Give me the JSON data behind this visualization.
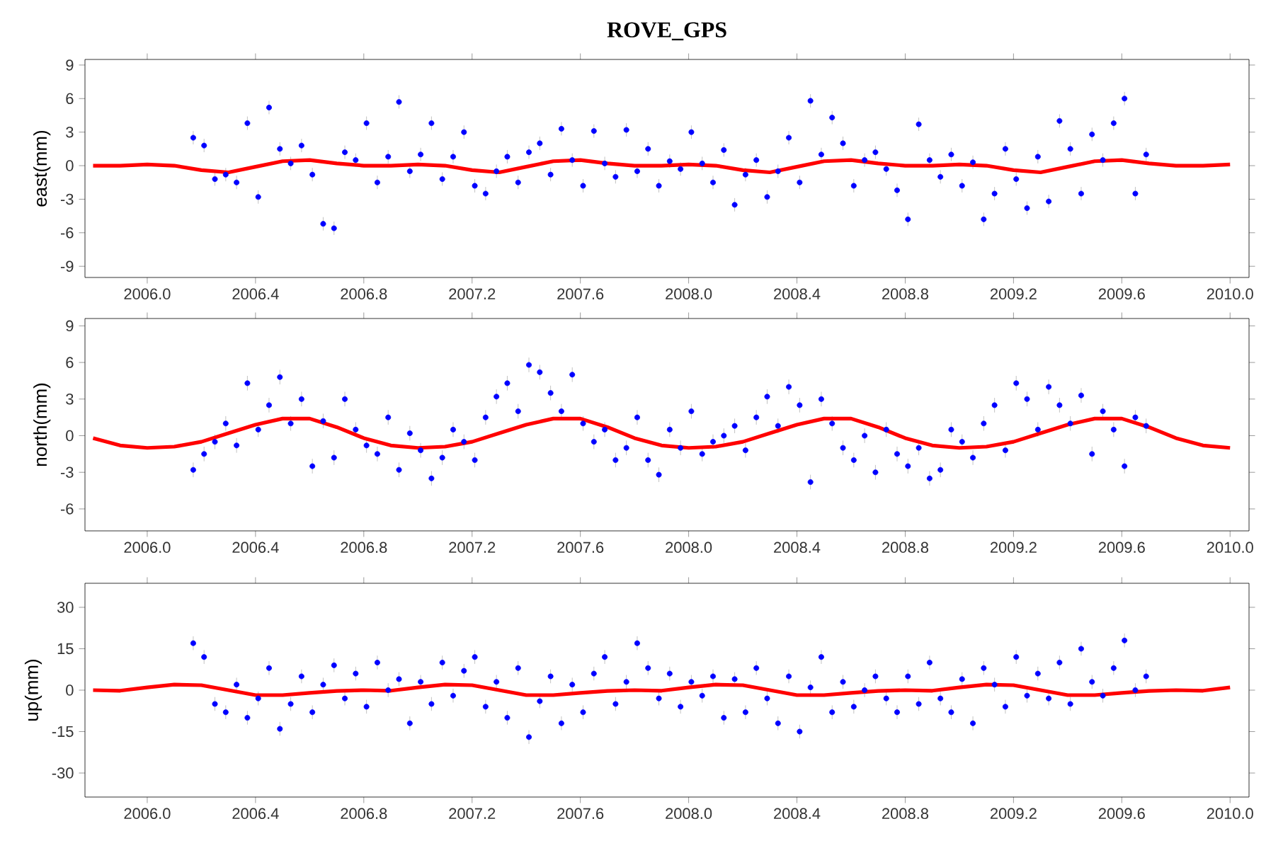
{
  "chart_data": [
    {
      "type": "scatter",
      "title": "ROVE_GPS",
      "ylabel": "east(mm)",
      "xlim": [
        2005.77,
        2010.07
      ],
      "ylim": [
        -10,
        9.5
      ],
      "xticks": [
        {
          "value": 2006.0,
          "label": "2006.0"
        },
        {
          "value": 2006.4,
          "label": "2006.4"
        },
        {
          "value": 2006.8,
          "label": "2006.8"
        },
        {
          "value": 2007.2,
          "label": "2007.2"
        },
        {
          "value": 2007.6,
          "label": "2007.6"
        },
        {
          "value": 2008.0,
          "label": "2008.0"
        },
        {
          "value": 2008.4,
          "label": "2008.4"
        },
        {
          "value": 2008.8,
          "label": "2008.8"
        },
        {
          "value": 2009.2,
          "label": "2009.2"
        },
        {
          "value": 2009.6,
          "label": "2009.6"
        },
        {
          "value": 2010.0,
          "label": "2010.0"
        }
      ],
      "yticks": [
        -9,
        -6,
        -3,
        0,
        3,
        6,
        9
      ],
      "series": [
        {
          "type": "scatter",
          "marker": "circle",
          "color": "#0000ff",
          "x": [
            2006.17,
            2006.21,
            2006.25,
            2006.29,
            2006.33,
            2006.37,
            2006.41,
            2006.45,
            2006.49,
            2006.53,
            2006.57,
            2006.61,
            2006.65,
            2006.69,
            2006.73,
            2006.77,
            2006.81,
            2006.85,
            2006.89,
            2006.93,
            2006.97,
            2007.01,
            2007.05,
            2007.09,
            2007.13,
            2007.17,
            2007.21,
            2007.25,
            2007.29,
            2007.33,
            2007.37,
            2007.41,
            2007.45,
            2007.49,
            2007.53,
            2007.57,
            2007.61,
            2007.65,
            2007.69,
            2007.73,
            2007.77,
            2007.81,
            2007.85,
            2007.89,
            2007.93,
            2007.97,
            2008.01,
            2008.05,
            2008.09,
            2008.13,
            2008.17,
            2008.21,
            2008.25,
            2008.29,
            2008.33,
            2008.37,
            2008.41,
            2008.45,
            2008.49,
            2008.53,
            2008.57,
            2008.61,
            2008.65,
            2008.69,
            2008.73,
            2008.77,
            2008.81,
            2008.85,
            2008.89,
            2008.93,
            2008.97,
            2009.01,
            2009.05,
            2009.09,
            2009.13,
            2009.17,
            2009.21,
            2009.25,
            2009.29,
            2009.33,
            2009.37,
            2009.41,
            2009.45,
            2009.49,
            2009.53,
            2009.57,
            2009.61,
            2009.65,
            2009.69
          ],
          "values": [
            2.5,
            1.8,
            -1.2,
            -0.8,
            -1.5,
            3.8,
            -2.8,
            5.2,
            1.5,
            0.2,
            1.8,
            -0.8,
            -5.2,
            -5.6,
            1.2,
            0.5,
            3.8,
            -1.5,
            0.8,
            5.7,
            -0.5,
            1.0,
            3.8,
            -1.2,
            0.8,
            3.0,
            -1.8,
            -2.5,
            -0.5,
            0.8,
            -1.5,
            1.2,
            2.0,
            -0.8,
            3.3,
            0.5,
            -1.8,
            3.1,
            0.2,
            -1.0,
            3.2,
            -0.5,
            1.5,
            -1.8,
            0.4,
            -0.3,
            3.0,
            0.2,
            -1.5,
            1.4,
            -3.5,
            -0.8,
            0.5,
            -2.8,
            -0.5,
            2.5,
            -1.5,
            5.8,
            1.0,
            4.3,
            2.0,
            -1.8,
            0.5,
            1.2,
            -0.3,
            -2.2,
            -4.8,
            3.7,
            0.5,
            -1.0,
            1.0,
            -1.8,
            0.3,
            -4.8,
            -2.5,
            1.5,
            -1.2,
            -3.8,
            0.8,
            -3.2,
            4.0,
            1.5,
            -2.5,
            2.8,
            0.5,
            3.8,
            6.0,
            -2.5,
            1.0
          ],
          "errors": [
            0.6,
            0.6,
            0.6,
            0.6,
            0.6,
            0.6,
            0.6,
            0.6,
            0.6,
            0.6,
            0.6,
            0.6,
            0.6,
            0.6,
            0.6,
            0.6,
            0.6,
            0.6,
            0.6,
            0.6,
            0.6,
            0.6,
            0.6,
            0.6,
            0.6,
            0.6,
            0.6,
            0.6,
            0.6,
            0.6,
            0.6,
            0.6,
            0.6,
            0.6,
            0.6,
            0.6,
            0.6,
            0.6,
            0.6,
            0.6,
            0.6,
            0.6,
            0.6,
            0.6,
            0.6,
            0.6,
            0.6,
            0.6,
            0.6,
            0.6,
            0.6,
            0.6,
            0.6,
            0.6,
            0.6,
            0.6,
            0.6,
            0.6,
            0.6,
            0.6,
            0.6,
            0.6,
            0.6,
            0.6,
            0.6,
            0.6,
            0.6,
            0.6,
            0.6,
            0.6,
            0.6,
            0.6,
            0.6,
            0.6,
            0.6,
            0.6,
            0.6,
            0.6,
            0.6,
            0.6,
            0.6,
            0.6,
            0.6,
            0.6,
            0.6,
            0.6,
            0.6,
            0.6,
            0.6
          ]
        },
        {
          "type": "line",
          "color": "#ff0000",
          "marker": "none",
          "x": [
            2005.8,
            2005.9,
            2006.0,
            2006.1,
            2006.2,
            2006.3,
            2006.4,
            2006.5,
            2006.6,
            2006.7,
            2006.8,
            2006.9,
            2007.0,
            2007.1,
            2007.2,
            2007.3,
            2007.4,
            2007.5,
            2007.6,
            2007.7,
            2007.8,
            2007.9,
            2008.0,
            2008.1,
            2008.2,
            2008.3,
            2008.4,
            2008.5,
            2008.6,
            2008.7,
            2008.8,
            2008.9,
            2009.0,
            2009.1,
            2009.2,
            2009.3,
            2009.4,
            2009.5,
            2009.6,
            2009.7,
            2009.8,
            2009.9,
            2010.0
          ],
          "values": [
            0.0,
            0.0,
            0.1,
            0.0,
            -0.4,
            -0.6,
            -0.1,
            0.4,
            0.5,
            0.2,
            0.0,
            0.0,
            0.1,
            0.0,
            -0.4,
            -0.6,
            -0.1,
            0.4,
            0.5,
            0.2,
            0.0,
            0.0,
            0.1,
            0.0,
            -0.4,
            -0.6,
            -0.1,
            0.4,
            0.5,
            0.2,
            0.0,
            0.0,
            0.1,
            0.0,
            -0.4,
            -0.6,
            -0.1,
            0.4,
            0.5,
            0.2,
            0.0,
            0.0,
            0.1
          ]
        }
      ]
    },
    {
      "type": "scatter",
      "ylabel": "north(mm)",
      "xlim": [
        2005.77,
        2010.07
      ],
      "ylim": [
        -7.8,
        9.6
      ],
      "xticks": [
        {
          "value": 2006.0,
          "label": "2006.0"
        },
        {
          "value": 2006.4,
          "label": "2006.4"
        },
        {
          "value": 2006.8,
          "label": "2006.8"
        },
        {
          "value": 2007.2,
          "label": "2007.2"
        },
        {
          "value": 2007.6,
          "label": "2007.6"
        },
        {
          "value": 2008.0,
          "label": "2008.0"
        },
        {
          "value": 2008.4,
          "label": "2008.4"
        },
        {
          "value": 2008.8,
          "label": "2008.8"
        },
        {
          "value": 2009.2,
          "label": "2009.2"
        },
        {
          "value": 2009.6,
          "label": "2009.6"
        },
        {
          "value": 2010.0,
          "label": "2010.0"
        }
      ],
      "yticks": [
        -6,
        -3,
        0,
        3,
        6,
        9
      ],
      "series": [
        {
          "type": "scatter",
          "marker": "circle",
          "color": "#0000ff",
          "x": [
            2006.17,
            2006.21,
            2006.25,
            2006.29,
            2006.33,
            2006.37,
            2006.41,
            2006.45,
            2006.49,
            2006.53,
            2006.57,
            2006.61,
            2006.65,
            2006.69,
            2006.73,
            2006.77,
            2006.81,
            2006.85,
            2006.89,
            2006.93,
            2006.97,
            2007.01,
            2007.05,
            2007.09,
            2007.13,
            2007.17,
            2007.21,
            2007.25,
            2007.29,
            2007.33,
            2007.37,
            2007.41,
            2007.45,
            2007.49,
            2007.53,
            2007.57,
            2007.61,
            2007.65,
            2007.69,
            2007.73,
            2007.77,
            2007.81,
            2007.85,
            2007.89,
            2007.93,
            2007.97,
            2008.01,
            2008.05,
            2008.09,
            2008.13,
            2008.17,
            2008.21,
            2008.25,
            2008.29,
            2008.33,
            2008.37,
            2008.41,
            2008.45,
            2008.49,
            2008.53,
            2008.57,
            2008.61,
            2008.65,
            2008.69,
            2008.73,
            2008.77,
            2008.81,
            2008.85,
            2008.89,
            2008.93,
            2008.97,
            2009.01,
            2009.05,
            2009.09,
            2009.13,
            2009.17,
            2009.21,
            2009.25,
            2009.29,
            2009.33,
            2009.37,
            2009.41,
            2009.45,
            2009.49,
            2009.53,
            2009.57,
            2009.61,
            2009.65,
            2009.69
          ],
          "values": [
            -2.8,
            -1.5,
            -0.5,
            1.0,
            -0.8,
            4.3,
            0.5,
            2.5,
            4.8,
            1.0,
            3.0,
            -2.5,
            1.2,
            -1.8,
            3.0,
            0.5,
            -0.8,
            -1.5,
            1.5,
            -2.8,
            0.2,
            -1.2,
            -3.5,
            -1.8,
            0.5,
            -0.5,
            -2.0,
            1.5,
            3.2,
            4.3,
            2.0,
            5.8,
            5.2,
            3.5,
            2.0,
            5.0,
            1.0,
            -0.5,
            0.5,
            -2.0,
            -1.0,
            1.5,
            -2.0,
            -3.2,
            0.5,
            -1.0,
            2.0,
            -1.5,
            -0.5,
            0.0,
            0.8,
            -1.2,
            1.5,
            3.2,
            0.8,
            4.0,
            2.5,
            -3.8,
            3.0,
            1.0,
            -1.0,
            -2.0,
            0.0,
            -3.0,
            0.5,
            -1.5,
            -2.5,
            -1.0,
            -3.5,
            -2.8,
            0.5,
            -0.5,
            -1.8,
            1.0,
            2.5,
            -1.2,
            4.3,
            3.0,
            0.5,
            4.0,
            2.5,
            1.0,
            3.3,
            -1.5,
            2.0,
            0.5,
            -2.5,
            1.5,
            0.8
          ],
          "errors": [
            0.6,
            0.6,
            0.6,
            0.6,
            0.6,
            0.6,
            0.6,
            0.6,
            0.6,
            0.6,
            0.6,
            0.6,
            0.6,
            0.6,
            0.6,
            0.6,
            0.6,
            0.6,
            0.6,
            0.6,
            0.6,
            0.6,
            0.6,
            0.6,
            0.6,
            0.6,
            0.6,
            0.6,
            0.6,
            0.6,
            0.6,
            0.6,
            0.6,
            0.6,
            0.6,
            0.6,
            0.6,
            0.6,
            0.6,
            0.6,
            0.6,
            0.6,
            0.6,
            0.6,
            0.6,
            0.6,
            0.6,
            0.6,
            0.6,
            0.6,
            0.6,
            0.6,
            0.6,
            0.6,
            0.6,
            0.6,
            0.6,
            0.6,
            0.6,
            0.6,
            0.6,
            0.6,
            0.6,
            0.6,
            0.6,
            0.6,
            0.6,
            0.6,
            0.6,
            0.6,
            0.6,
            0.6,
            0.6,
            0.6,
            0.6,
            0.6,
            0.6,
            0.6,
            0.6,
            0.6,
            0.6,
            0.6,
            0.6,
            0.6,
            0.6,
            0.6,
            0.6,
            0.6,
            0.6
          ]
        },
        {
          "type": "line",
          "color": "#ff0000",
          "marker": "none",
          "x": [
            2005.8,
            2005.9,
            2006.0,
            2006.1,
            2006.2,
            2006.3,
            2006.4,
            2006.5,
            2006.6,
            2006.7,
            2006.8,
            2006.9,
            2007.0,
            2007.1,
            2007.2,
            2007.3,
            2007.4,
            2007.5,
            2007.6,
            2007.7,
            2007.8,
            2007.9,
            2008.0,
            2008.1,
            2008.2,
            2008.3,
            2008.4,
            2008.5,
            2008.6,
            2008.7,
            2008.8,
            2008.9,
            2009.0,
            2009.1,
            2009.2,
            2009.3,
            2009.4,
            2009.5,
            2009.6,
            2009.7,
            2009.8,
            2009.9,
            2010.0
          ],
          "values": [
            -0.2,
            -0.8,
            -1.0,
            -0.9,
            -0.5,
            0.2,
            0.9,
            1.4,
            1.4,
            0.7,
            -0.2,
            -0.8,
            -1.0,
            -0.9,
            -0.5,
            0.2,
            0.9,
            1.4,
            1.4,
            0.7,
            -0.2,
            -0.8,
            -1.0,
            -0.9,
            -0.5,
            0.2,
            0.9,
            1.4,
            1.4,
            0.7,
            -0.2,
            -0.8,
            -1.0,
            -0.9,
            -0.5,
            0.2,
            0.9,
            1.4,
            1.4,
            0.7,
            -0.2,
            -0.8,
            -1.0
          ]
        }
      ]
    },
    {
      "type": "scatter",
      "ylabel": "up(mm)",
      "xlim": [
        2005.77,
        2010.07
      ],
      "ylim": [
        -38.7,
        38.7
      ],
      "xticks": [
        {
          "value": 2006.0,
          "label": "2006.0"
        },
        {
          "value": 2006.4,
          "label": "2006.4"
        },
        {
          "value": 2006.8,
          "label": "2006.8"
        },
        {
          "value": 2007.2,
          "label": "2007.2"
        },
        {
          "value": 2007.6,
          "label": "2007.6"
        },
        {
          "value": 2008.0,
          "label": "2008.0"
        },
        {
          "value": 2008.4,
          "label": "2008.4"
        },
        {
          "value": 2008.8,
          "label": "2008.8"
        },
        {
          "value": 2009.2,
          "label": "2009.2"
        },
        {
          "value": 2009.6,
          "label": "2009.6"
        },
        {
          "value": 2010.0,
          "label": "2010.0"
        }
      ],
      "yticks": [
        -30,
        -15,
        0,
        15,
        30
      ],
      "series": [
        {
          "type": "scatter",
          "marker": "circle",
          "color": "#0000ff",
          "x": [
            2006.17,
            2006.21,
            2006.25,
            2006.29,
            2006.33,
            2006.37,
            2006.41,
            2006.45,
            2006.49,
            2006.53,
            2006.57,
            2006.61,
            2006.65,
            2006.69,
            2006.73,
            2006.77,
            2006.81,
            2006.85,
            2006.89,
            2006.93,
            2006.97,
            2007.01,
            2007.05,
            2007.09,
            2007.13,
            2007.17,
            2007.21,
            2007.25,
            2007.29,
            2007.33,
            2007.37,
            2007.41,
            2007.45,
            2007.49,
            2007.53,
            2007.57,
            2007.61,
            2007.65,
            2007.69,
            2007.73,
            2007.77,
            2007.81,
            2007.85,
            2007.89,
            2007.93,
            2007.97,
            2008.01,
            2008.05,
            2008.09,
            2008.13,
            2008.17,
            2008.21,
            2008.25,
            2008.29,
            2008.33,
            2008.37,
            2008.41,
            2008.45,
            2008.49,
            2008.53,
            2008.57,
            2008.61,
            2008.65,
            2008.69,
            2008.73,
            2008.77,
            2008.81,
            2008.85,
            2008.89,
            2008.93,
            2008.97,
            2009.01,
            2009.05,
            2009.09,
            2009.13,
            2009.17,
            2009.21,
            2009.25,
            2009.29,
            2009.33,
            2009.37,
            2009.41,
            2009.45,
            2009.49,
            2009.53,
            2009.57,
            2009.61,
            2009.65,
            2009.69
          ],
          "values": [
            17,
            12,
            -5,
            -8,
            2,
            -10,
            -3,
            8,
            -14,
            -5,
            5,
            -8,
            2,
            9,
            -3,
            6,
            -6,
            10,
            0,
            4,
            -12,
            3,
            -5,
            10,
            -2,
            7,
            12,
            -6,
            3,
            -10,
            8,
            -17,
            -4,
            5,
            -12,
            2,
            -8,
            6,
            12,
            -5,
            3,
            17,
            8,
            -3,
            6,
            -6,
            3,
            -2,
            5,
            -10,
            4,
            -8,
            8,
            -3,
            -12,
            5,
            -15,
            1,
            12,
            -8,
            3,
            -6,
            0,
            5,
            -3,
            -8,
            5,
            -5,
            10,
            -3,
            -8,
            4,
            -12,
            8,
            2,
            -6,
            12,
            -2,
            6,
            -3,
            10,
            -5,
            15,
            3,
            -2,
            8,
            18,
            0,
            5
          ],
          "errors": [
            2.5,
            2.5,
            2.5,
            2.5,
            2.5,
            2.5,
            2.5,
            2.5,
            2.5,
            2.5,
            2.5,
            2.5,
            2.5,
            2.5,
            2.5,
            2.5,
            2.5,
            2.5,
            2.5,
            2.5,
            2.5,
            2.5,
            2.5,
            2.5,
            2.5,
            2.5,
            2.5,
            2.5,
            2.5,
            2.5,
            2.5,
            2.5,
            2.5,
            2.5,
            2.5,
            2.5,
            2.5,
            2.5,
            2.5,
            2.5,
            2.5,
            2.5,
            2.5,
            2.5,
            2.5,
            2.5,
            2.5,
            2.5,
            2.5,
            2.5,
            2.5,
            2.5,
            2.5,
            2.5,
            2.5,
            2.5,
            2.5,
            2.5,
            2.5,
            2.5,
            2.5,
            2.5,
            2.5,
            2.5,
            2.5,
            2.5,
            2.5,
            2.5,
            2.5,
            2.5,
            2.5,
            2.5,
            2.5,
            2.5,
            2.5,
            2.5,
            2.5,
            2.5,
            2.5,
            2.5,
            2.5,
            2.5,
            2.5,
            2.5,
            2.5,
            2.5,
            2.5,
            2.5,
            2.5
          ]
        },
        {
          "type": "line",
          "color": "#ff0000",
          "marker": "none",
          "x": [
            2005.8,
            2005.9,
            2006.0,
            2006.1,
            2006.2,
            2006.3,
            2006.4,
            2006.5,
            2006.6,
            2006.7,
            2006.8,
            2006.9,
            2007.0,
            2007.1,
            2007.2,
            2007.3,
            2007.4,
            2007.5,
            2007.6,
            2007.7,
            2007.8,
            2007.9,
            2008.0,
            2008.1,
            2008.2,
            2008.3,
            2008.4,
            2008.5,
            2008.6,
            2008.7,
            2008.8,
            2008.9,
            2009.0,
            2009.1,
            2009.2,
            2009.3,
            2009.4,
            2009.5,
            2009.6,
            2009.7,
            2009.8,
            2009.9,
            2010.0
          ],
          "values": [
            0.0,
            -0.2,
            1.0,
            2.0,
            1.8,
            0.0,
            -1.8,
            -1.8,
            -1.0,
            -0.3,
            0.0,
            -0.2,
            1.0,
            2.0,
            1.8,
            0.0,
            -1.8,
            -1.8,
            -1.0,
            -0.3,
            0.0,
            -0.2,
            1.0,
            2.0,
            1.8,
            0.0,
            -1.8,
            -1.8,
            -1.0,
            -0.3,
            0.0,
            -0.2,
            1.0,
            2.0,
            1.8,
            0.0,
            -1.8,
            -1.8,
            -1.0,
            -0.3,
            0.0,
            -0.2,
            1.0
          ]
        }
      ]
    }
  ]
}
